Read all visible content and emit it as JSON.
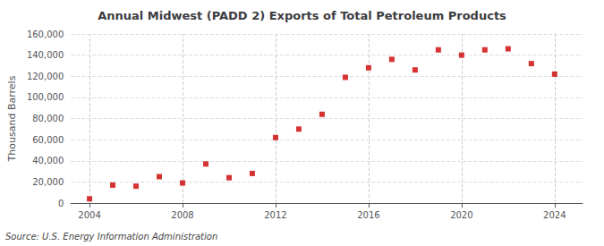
{
  "chart_data": {
    "type": "scatter",
    "title": "Annual Midwest (PADD 2) Exports of Total Petroleum Products",
    "ylabel": "Thousand Barrels",
    "annotation": "Source: U.S. Energy Information Administration",
    "x": [
      2004,
      2005,
      2006,
      2007,
      2008,
      2009,
      2010,
      2011,
      2012,
      2013,
      2014,
      2015,
      2016,
      2017,
      2018,
      2019,
      2020,
      2021,
      2022,
      2023,
      2024
    ],
    "values": [
      4000,
      17000,
      16000,
      25000,
      19000,
      37000,
      24000,
      28000,
      62000,
      70000,
      84000,
      119000,
      128000,
      136000,
      126000,
      145000,
      140000,
      145000,
      146000,
      132000,
      122000
    ],
    "color": "#cc0000",
    "marker": "square",
    "xlim": [
      2003.2,
      2025.2
    ],
    "xticks": [
      2004,
      2008,
      2012,
      2016,
      2020,
      2024
    ],
    "ylim": [
      0,
      160000
    ],
    "yticks": [
      0,
      {
        "value": 20000,
        "label": "20,000"
      },
      {
        "value": 40000,
        "label": "40,000"
      },
      {
        "value": 60000,
        "label": "60,000"
      },
      {
        "value": 80000,
        "label": "80,000"
      },
      {
        "value": 100000,
        "label": "100,000"
      },
      {
        "value": 120000,
        "label": "120,000"
      },
      {
        "value": 140000,
        "label": "140,000"
      },
      {
        "value": 160000,
        "label": "160,000"
      }
    ],
    "grid": true
  }
}
